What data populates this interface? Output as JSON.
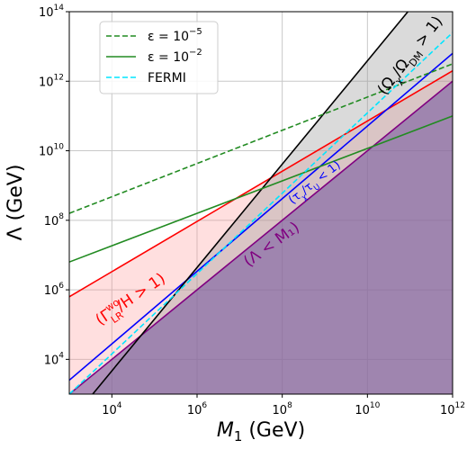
{
  "chart_data": {
    "type": "line",
    "xlabel": "M1 (GeV)",
    "ylabel": "Λ (GeV)",
    "xscale": "log",
    "yscale": "log",
    "xlim_log10": [
      3,
      12
    ],
    "ylim_log10": [
      3,
      14
    ],
    "grid": true,
    "legend_placement": "top-left",
    "x_ticks": [
      {
        "exp": 4,
        "label_base": "10",
        "label_exp": "4"
      },
      {
        "exp": 6,
        "label_base": "10",
        "label_exp": "6"
      },
      {
        "exp": 8,
        "label_base": "10",
        "label_exp": "8"
      },
      {
        "exp": 10,
        "label_base": "10",
        "label_exp": "10"
      },
      {
        "exp": 12,
        "label_base": "10",
        "label_exp": "12"
      }
    ],
    "y_ticks": [
      {
        "exp": 4,
        "label_base": "10",
        "label_exp": "4"
      },
      {
        "exp": 6,
        "label_base": "10",
        "label_exp": "6"
      },
      {
        "exp": 8,
        "label_base": "10",
        "label_exp": "8"
      },
      {
        "exp": 10,
        "label_base": "10",
        "label_exp": "10"
      },
      {
        "exp": 12,
        "label_base": "10",
        "label_exp": "12"
      },
      {
        "exp": 14,
        "label_base": "10",
        "label_exp": "14"
      }
    ],
    "series": [
      {
        "name": "ε = 10^−5",
        "legend_pre": "ε = 10",
        "legend_exp": "−5",
        "color": "#228B22",
        "dash": "dashed",
        "x_log10": [
          3,
          12
        ],
        "y_log10": [
          8.2,
          12.5
        ]
      },
      {
        "name": "ε = 10^−2",
        "legend_pre": "ε = 10",
        "legend_exp": "−2",
        "color": "#228B22",
        "dash": "solid",
        "x_log10": [
          3,
          12
        ],
        "y_log10": [
          6.8,
          11.0
        ]
      },
      {
        "name": "FERMI",
        "legend_pre": "FERMI",
        "legend_exp": "",
        "color": "#00e5ff",
        "dash": "dashed",
        "x_log10": [
          3,
          12
        ],
        "y_log10": [
          3.0,
          13.4
        ]
      }
    ],
    "region_boundaries": [
      {
        "id": "washout",
        "color": "#ff0000",
        "fill": "rgba(255,150,150,0.3)",
        "x_log10": [
          3,
          12
        ],
        "y_log10": [
          5.8,
          12.3
        ]
      },
      {
        "id": "lifetime",
        "color": "#0000ff",
        "x_log10": [
          3,
          12
        ],
        "y_log10": [
          3.4,
          12.8
        ]
      },
      {
        "id": "lambda_lt_m1",
        "color": "#800080",
        "fill": "rgba(120,90,160,0.6)",
        "x_log10": [
          3,
          12
        ],
        "y_log10": [
          3.0,
          12.0
        ]
      },
      {
        "id": "overabundance",
        "color": "#000000",
        "fill": "rgba(150,150,150,0.35)",
        "x_log10": [
          3.55,
          10.95
        ],
        "y_log10": [
          3.0,
          14.0
        ]
      }
    ],
    "annotations": [
      {
        "id": "washout",
        "pre": "(Γ",
        "sup": "wo",
        "sub": "LR",
        "post": "/H > 1)",
        "color": "#ff0000"
      },
      {
        "id": "lifetime",
        "pre": "(τ",
        "sub": "χ",
        "post": "/τ",
        "sub2": "U",
        "post2": " < 1)",
        "color": "#0000ff"
      },
      {
        "id": "lambda_lt_m1",
        "text": "(Λ < M₁)",
        "color": "#800080"
      },
      {
        "id": "overabundance",
        "pre": "(Ω",
        "sub": "χ",
        "post": "/Ω",
        "sub2": "DM",
        "post2": " > 1)",
        "color": "#000000"
      }
    ]
  }
}
